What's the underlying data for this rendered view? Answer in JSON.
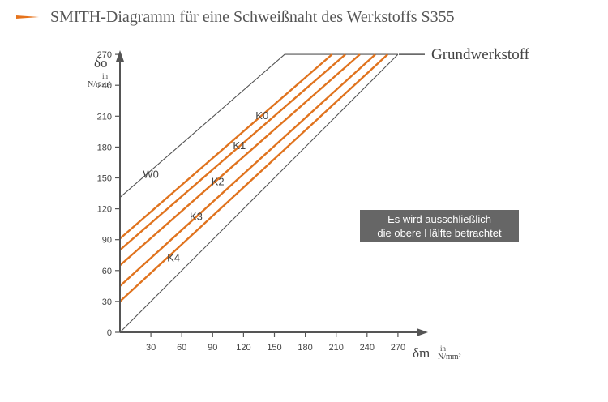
{
  "title": "SMITH-Diagramm für eine Schweißnaht des Werkstoffs S355",
  "colors": {
    "accent": "#e6731c",
    "curve": "#e0731e",
    "outline": "#555555",
    "axis": "#555555",
    "note_bg": "#666666",
    "note_text": "#ffffff",
    "text": "#444444"
  },
  "chart_data": {
    "type": "line",
    "title": "SMITH-Diagramm für eine Schweißnaht des Werkstoffs S355",
    "xlabel": {
      "symbol": "δm",
      "unit_in": "in",
      "unit": "N/mm²"
    },
    "ylabel": {
      "symbol": "δo",
      "unit_in": "in",
      "unit": "N/mm²"
    },
    "xlim": [
      0,
      300
    ],
    "ylim": [
      0,
      300
    ],
    "x_ticks": [
      30,
      60,
      90,
      120,
      150,
      180,
      210,
      240,
      270
    ],
    "y_ticks": [
      0,
      30,
      60,
      90,
      120,
      150,
      180,
      210,
      240,
      270
    ],
    "x_tick_labels": [
      "30",
      "60",
      "90",
      "120",
      "150",
      "180",
      "210",
      "240",
      "270"
    ],
    "y_tick_labels": [
      "0",
      "30",
      "60",
      "90",
      "120",
      "150",
      "180",
      "210",
      "240",
      "270"
    ],
    "grid": false,
    "series": [
      {
        "name": "W0",
        "color": "#555555",
        "points": [
          [
            0,
            131
          ],
          [
            160,
            270
          ],
          [
            270,
            270
          ]
        ]
      },
      {
        "name": "K0",
        "color": "#e0731e",
        "points": [
          [
            0,
            91
          ],
          [
            206,
            270
          ]
        ]
      },
      {
        "name": "K1",
        "color": "#e0731e",
        "points": [
          [
            0,
            80
          ],
          [
            219,
            270
          ]
        ]
      },
      {
        "name": "K2",
        "color": "#e0731e",
        "points": [
          [
            0,
            65
          ],
          [
            233,
            270
          ]
        ]
      },
      {
        "name": "K3",
        "color": "#e0731e",
        "points": [
          [
            0,
            45
          ],
          [
            248,
            270
          ]
        ]
      },
      {
        "name": "K4",
        "color": "#e0731e",
        "points": [
          [
            0,
            30
          ],
          [
            260,
            270
          ]
        ]
      },
      {
        "name": "",
        "color": "#555555",
        "points": [
          [
            0,
            0
          ],
          [
            270,
            270
          ]
        ]
      }
    ],
    "labels": [
      {
        "text": "W0",
        "x": 30,
        "y": 150
      },
      {
        "text": "K0",
        "x": 138,
        "y": 207
      },
      {
        "text": "K1",
        "x": 116,
        "y": 178
      },
      {
        "text": "K2",
        "x": 95,
        "y": 143
      },
      {
        "text": "K3",
        "x": 74,
        "y": 109
      },
      {
        "text": "K4",
        "x": 52,
        "y": 69
      }
    ],
    "annotations": {
      "grundwerkstoff": "Grundwerkstoff",
      "note_line1": "Es wird ausschließlich",
      "note_line2": "die obere Hälfte betrachtet"
    }
  }
}
